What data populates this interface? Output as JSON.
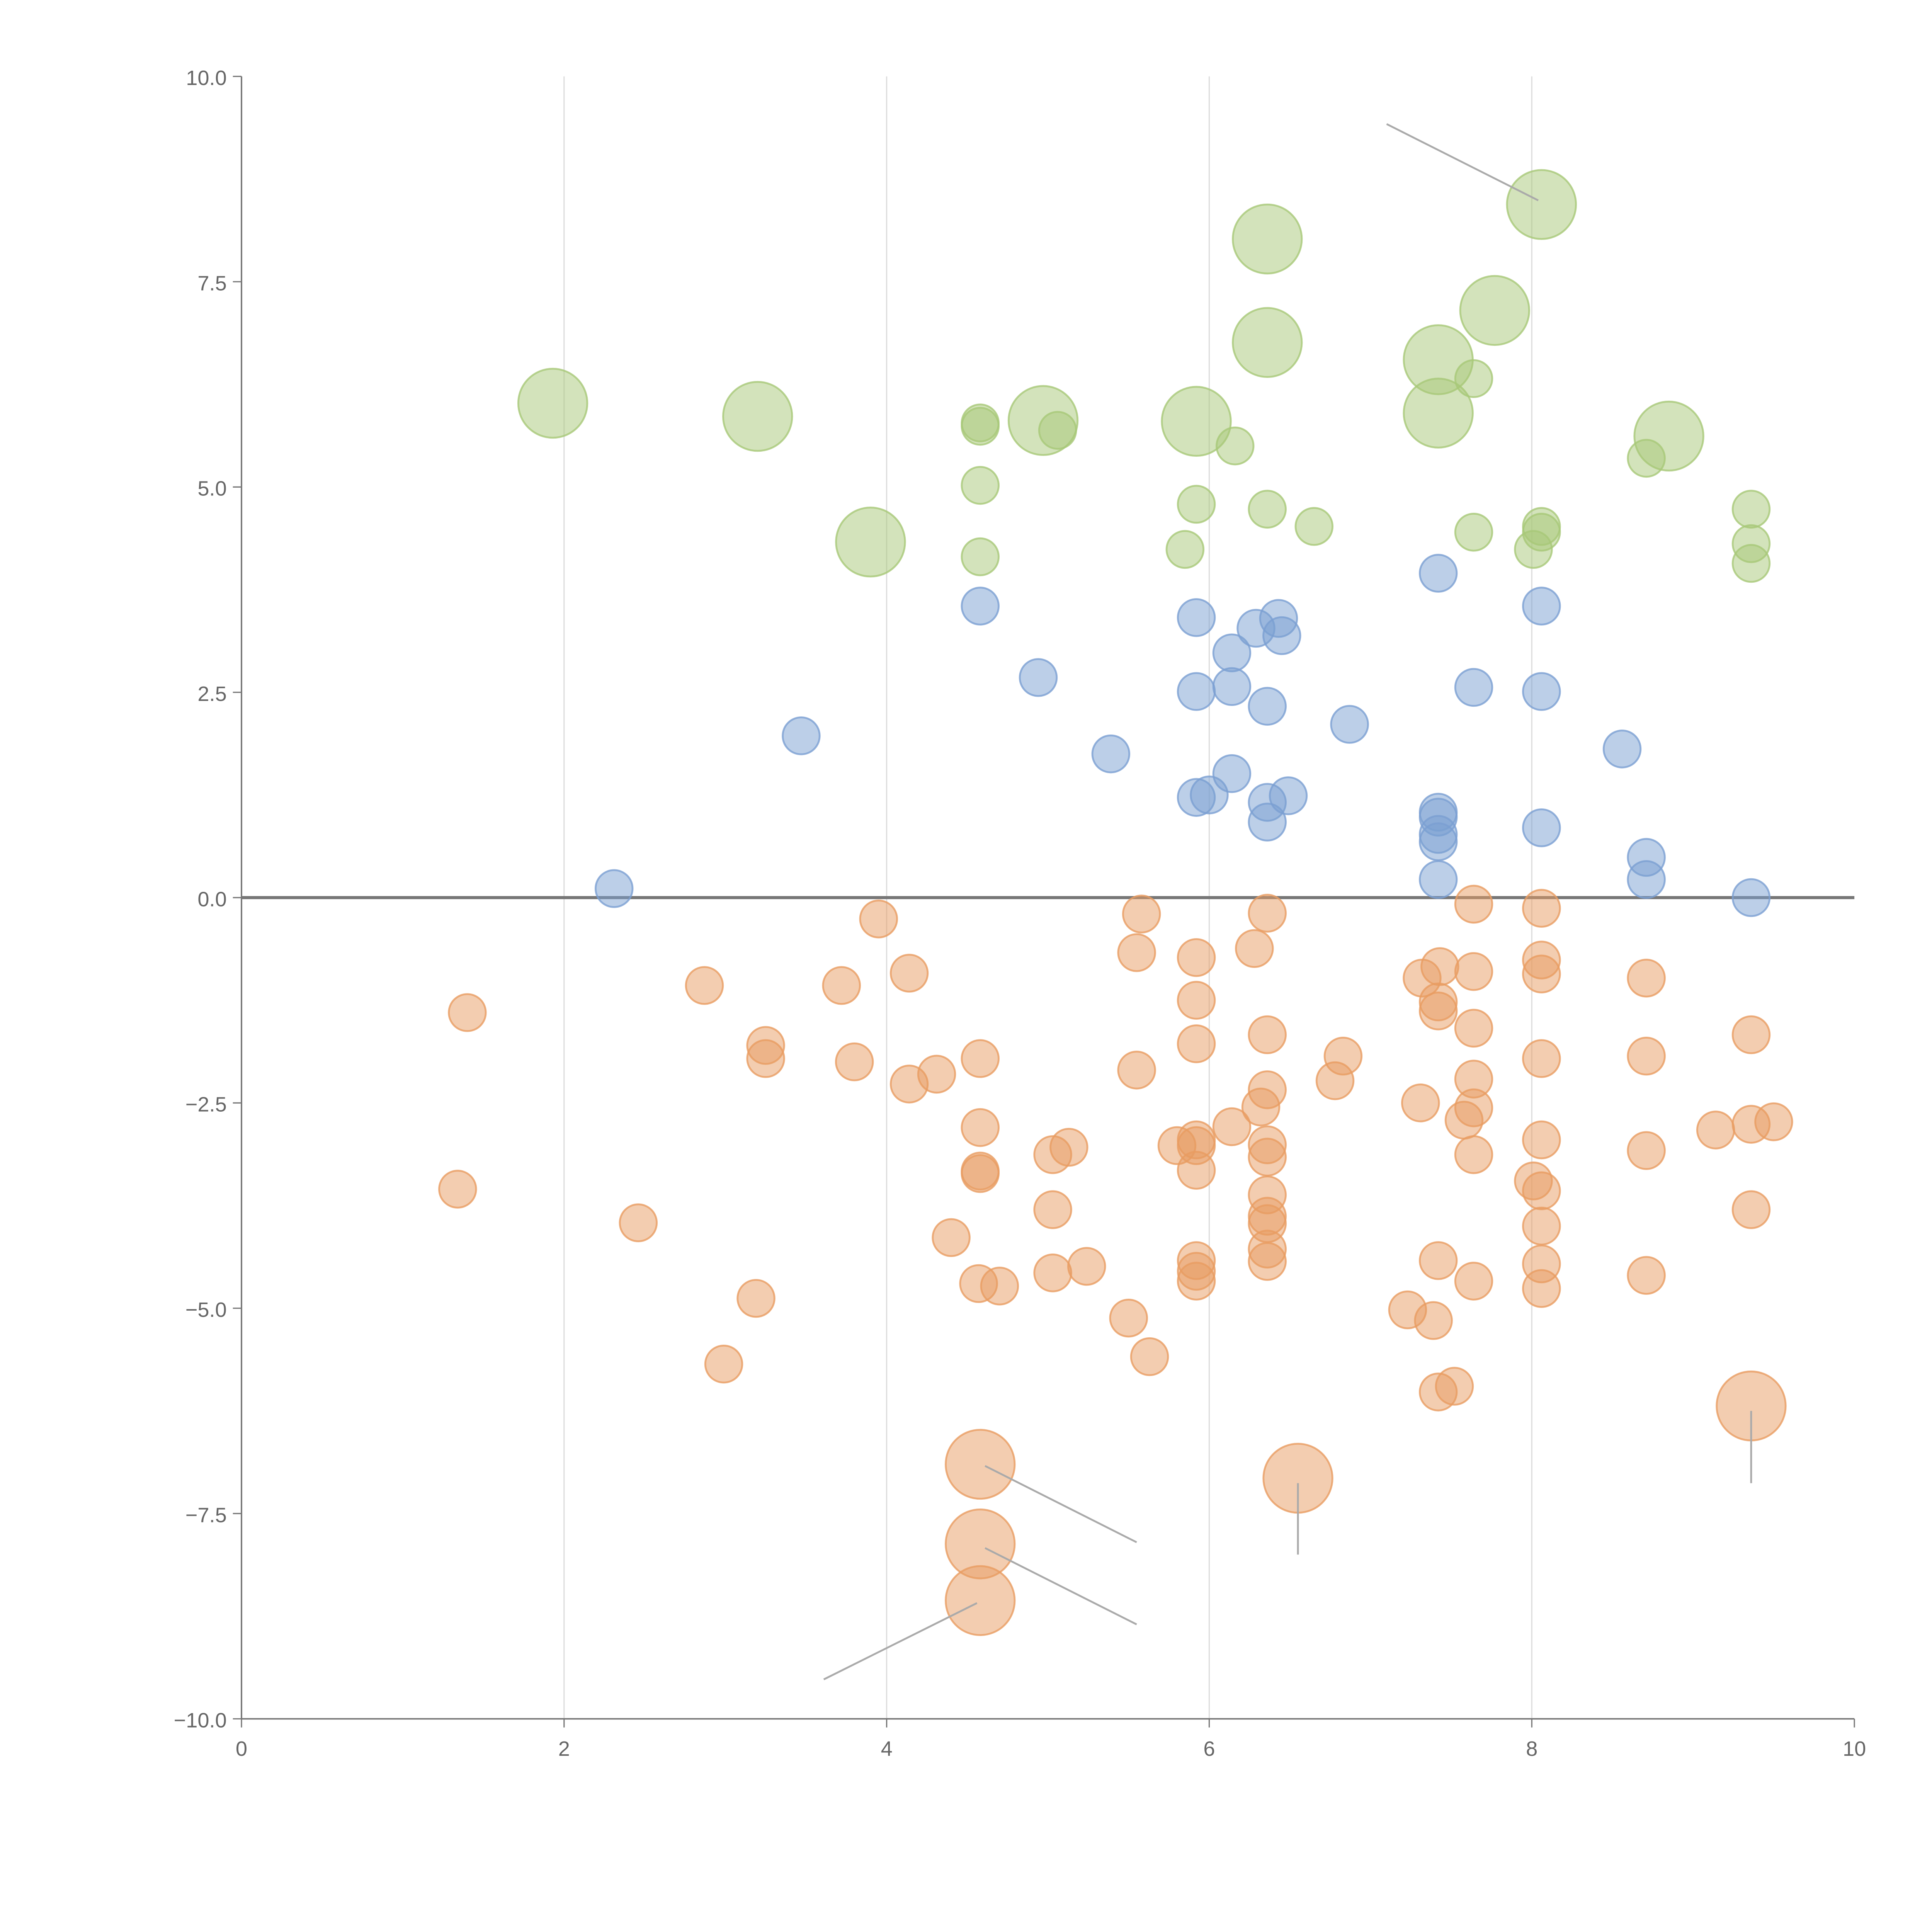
{
  "chart_data": {
    "type": "scatter",
    "title": "",
    "xlabel": "",
    "ylabel": "",
    "xlim": [
      0,
      10
    ],
    "ylim": [
      -10,
      10
    ],
    "xticks": [
      "0",
      "2",
      "4",
      "6",
      "8",
      "10"
    ],
    "yticks": [
      "10.0",
      "7.5",
      "5.0",
      "2.5",
      "0.0",
      "−2.5",
      "−5.0",
      "−7.5",
      "−10.0"
    ],
    "grid": "vertical",
    "colors": {
      "green": "#a8c878",
      "blue": "#7a9fd2",
      "orange": "#e89c62"
    },
    "series": [
      {
        "name": "green",
        "color": "#a8c878",
        "points": [
          [
            1.93,
            6.02,
            2
          ],
          [
            3.2,
            5.86,
            2
          ],
          [
            3.9,
            4.33,
            2
          ],
          [
            4.97,
            5.81,
            2
          ],
          [
            5.92,
            5.8,
            2
          ],
          [
            6.36,
            8.02,
            2
          ],
          [
            6.36,
            6.76,
            2
          ],
          [
            7.42,
            6.55,
            2
          ],
          [
            7.42,
            5.9,
            2
          ],
          [
            7.77,
            7.15,
            2
          ],
          [
            8.06,
            8.44,
            2
          ],
          [
            8.85,
            5.62,
            2
          ],
          [
            4.58,
            5.78,
            1
          ],
          [
            4.58,
            5.74,
            1
          ],
          [
            5.06,
            5.69,
            1
          ],
          [
            4.58,
            5.02,
            1
          ],
          [
            4.58,
            4.15,
            1
          ],
          [
            5.92,
            4.79,
            1
          ],
          [
            5.85,
            4.24,
            1
          ],
          [
            6.16,
            5.5,
            1
          ],
          [
            6.36,
            4.73,
            1
          ],
          [
            6.65,
            4.52,
            1
          ],
          [
            7.64,
            6.32,
            1
          ],
          [
            7.64,
            4.45,
            1
          ],
          [
            8.06,
            4.52,
            1
          ],
          [
            8.06,
            4.45,
            1
          ],
          [
            8.01,
            4.24,
            1
          ],
          [
            8.71,
            5.35,
            1
          ],
          [
            9.36,
            4.73,
            1
          ],
          [
            9.36,
            4.31,
            1
          ],
          [
            9.36,
            4.07,
            1
          ]
        ]
      },
      {
        "name": "blue",
        "color": "#7a9fd2",
        "points": [
          [
            2.31,
            0.11,
            1
          ],
          [
            3.47,
            1.97,
            1
          ],
          [
            4.58,
            3.55,
            1
          ],
          [
            4.94,
            2.68,
            1
          ],
          [
            5.39,
            1.75,
            1
          ],
          [
            5.92,
            3.41,
            1
          ],
          [
            5.92,
            2.51,
            1
          ],
          [
            5.92,
            1.22,
            1
          ],
          [
            6.0,
            1.25,
            1
          ],
          [
            6.14,
            2.98,
            1
          ],
          [
            6.14,
            2.57,
            1
          ],
          [
            6.14,
            1.51,
            1
          ],
          [
            6.29,
            3.28,
            1
          ],
          [
            6.43,
            3.4,
            1
          ],
          [
            6.45,
            3.19,
            1
          ],
          [
            6.36,
            2.33,
            1
          ],
          [
            6.36,
            1.16,
            1
          ],
          [
            6.36,
            0.92,
            1
          ],
          [
            6.49,
            1.24,
            1
          ],
          [
            6.87,
            2.11,
            1
          ],
          [
            7.42,
            3.95,
            1
          ],
          [
            7.42,
            1.04,
            1
          ],
          [
            7.42,
            0.98,
            1
          ],
          [
            7.42,
            0.77,
            1
          ],
          [
            7.42,
            0.68,
            1
          ],
          [
            7.42,
            0.22,
            1
          ],
          [
            7.64,
            2.56,
            1
          ],
          [
            8.06,
            3.55,
            1
          ],
          [
            8.06,
            2.51,
            1
          ],
          [
            8.06,
            0.85,
            1
          ],
          [
            8.56,
            1.81,
            1
          ],
          [
            8.71,
            0.49,
            1
          ],
          [
            8.71,
            0.22,
            1
          ],
          [
            9.36,
            0.0,
            1
          ]
        ]
      },
      {
        "name": "orange",
        "color": "#e89c62",
        "points": [
          [
            1.4,
            -1.4,
            1
          ],
          [
            1.34,
            -3.55,
            1
          ],
          [
            2.46,
            -3.96,
            1
          ],
          [
            2.87,
            -1.07,
            1
          ],
          [
            2.99,
            -5.68,
            1
          ],
          [
            3.19,
            -4.88,
            1
          ],
          [
            3.25,
            -1.8,
            1
          ],
          [
            3.25,
            -1.96,
            1
          ],
          [
            3.72,
            -1.07,
            1
          ],
          [
            3.8,
            -2.0,
            1
          ],
          [
            3.95,
            -0.26,
            1
          ],
          [
            4.14,
            -0.92,
            1
          ],
          [
            4.14,
            -2.27,
            1
          ],
          [
            4.31,
            -2.15,
            1
          ],
          [
            4.4,
            -4.14,
            1
          ],
          [
            4.58,
            -1.96,
            1
          ],
          [
            4.58,
            -2.8,
            1
          ],
          [
            4.58,
            -3.33,
            1
          ],
          [
            4.58,
            -3.36,
            1
          ],
          [
            4.57,
            -4.7,
            1
          ],
          [
            4.7,
            -4.73,
            1
          ],
          [
            5.03,
            -3.13,
            1
          ],
          [
            5.13,
            -3.04,
            1
          ],
          [
            5.03,
            -3.8,
            1
          ],
          [
            5.03,
            -4.57,
            1
          ],
          [
            5.24,
            -4.49,
            1
          ],
          [
            5.5,
            -5.12,
            1
          ],
          [
            5.63,
            -5.59,
            1
          ],
          [
            5.55,
            -2.1,
            1
          ],
          [
            5.55,
            -0.67,
            1
          ],
          [
            5.58,
            -0.2,
            1
          ],
          [
            5.8,
            -3.02,
            1
          ],
          [
            5.92,
            -0.73,
            1
          ],
          [
            5.92,
            -1.25,
            1
          ],
          [
            5.92,
            -1.78,
            1
          ],
          [
            5.92,
            -2.95,
            1
          ],
          [
            5.92,
            -3.02,
            1
          ],
          [
            5.92,
            -3.32,
            1
          ],
          [
            5.92,
            -4.42,
            1
          ],
          [
            5.92,
            -4.55,
            1
          ],
          [
            5.92,
            -4.67,
            1
          ],
          [
            6.14,
            -2.79,
            1
          ],
          [
            6.28,
            -0.62,
            1
          ],
          [
            6.32,
            -2.55,
            1
          ],
          [
            6.36,
            -0.19,
            1
          ],
          [
            6.36,
            -1.67,
            1
          ],
          [
            6.36,
            -2.34,
            1
          ],
          [
            6.36,
            -3.01,
            1
          ],
          [
            6.36,
            -3.16,
            1
          ],
          [
            6.36,
            -3.62,
            1
          ],
          [
            6.36,
            -3.88,
            1
          ],
          [
            6.36,
            -3.97,
            1
          ],
          [
            6.36,
            -4.28,
            1
          ],
          [
            6.36,
            -4.43,
            1
          ],
          [
            6.83,
            -1.93,
            1
          ],
          [
            6.78,
            -2.23,
            1
          ],
          [
            7.23,
            -5.02,
            1
          ],
          [
            7.31,
            -2.5,
            1
          ],
          [
            7.32,
            -0.98,
            1
          ],
          [
            7.43,
            -0.84,
            1
          ],
          [
            7.42,
            -1.27,
            1
          ],
          [
            7.42,
            -1.38,
            1
          ],
          [
            7.39,
            -5.15,
            1
          ],
          [
            7.42,
            -4.42,
            1
          ],
          [
            7.42,
            -6.02,
            1
          ],
          [
            7.52,
            -5.95,
            1
          ],
          [
            7.58,
            -2.71,
            1
          ],
          [
            7.64,
            -0.08,
            1
          ],
          [
            7.64,
            -0.9,
            1
          ],
          [
            7.64,
            -1.59,
            1
          ],
          [
            7.64,
            -2.21,
            1
          ],
          [
            7.64,
            -2.56,
            1
          ],
          [
            7.64,
            -3.13,
            1
          ],
          [
            7.64,
            -4.67,
            1
          ],
          [
            8.01,
            -3.45,
            1
          ],
          [
            8.06,
            -0.13,
            1
          ],
          [
            8.06,
            -0.76,
            1
          ],
          [
            8.06,
            -0.93,
            1
          ],
          [
            8.06,
            -1.96,
            1
          ],
          [
            8.06,
            -2.95,
            1
          ],
          [
            8.06,
            -3.57,
            1
          ],
          [
            8.06,
            -4.0,
            1
          ],
          [
            8.06,
            -4.46,
            1
          ],
          [
            8.06,
            -4.76,
            1
          ],
          [
            8.71,
            -0.98,
            1
          ],
          [
            8.71,
            -1.93,
            1
          ],
          [
            8.71,
            -3.08,
            1
          ],
          [
            8.71,
            -4.6,
            1
          ],
          [
            9.14,
            -2.83,
            1
          ],
          [
            9.36,
            -1.67,
            1
          ],
          [
            9.36,
            -2.76,
            1
          ],
          [
            9.36,
            -3.8,
            1
          ],
          [
            9.5,
            -2.73,
            1
          ],
          [
            4.58,
            -6.9,
            2
          ],
          [
            4.58,
            -7.87,
            2
          ],
          [
            4.58,
            -8.56,
            2
          ],
          [
            6.55,
            -7.07,
            2
          ],
          [
            9.36,
            -6.19,
            2
          ]
        ]
      }
    ],
    "annotation_lines": [
      [
        7.1,
        9.42,
        8.04,
        8.49
      ],
      [
        4.61,
        -6.92,
        5.55,
        -7.85
      ],
      [
        4.61,
        -7.92,
        5.55,
        -8.85
      ],
      [
        4.56,
        -8.59,
        3.61,
        -9.52
      ],
      [
        6.55,
        -7.13,
        6.55,
        -8.0
      ],
      [
        9.36,
        -6.25,
        9.36,
        -7.13
      ]
    ]
  }
}
